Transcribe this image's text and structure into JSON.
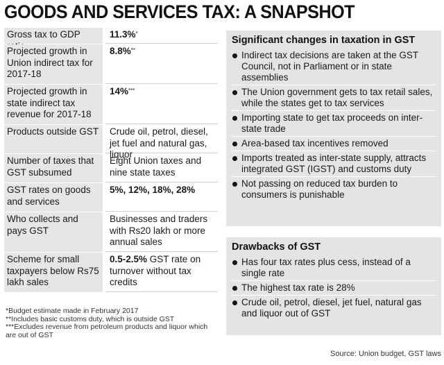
{
  "title": "GOODS AND SERVICES TAX: A SNAPSHOT",
  "table": [
    {
      "label": "Gross tax to GDP ratio",
      "value_bold": "11.3%",
      "value_sup": "*",
      "value_rest": ""
    },
    {
      "label": "Projected growth in Union indirect tax for 2017-18",
      "value_bold": "8.8%",
      "value_sup": "**",
      "value_rest": ""
    },
    {
      "label": "Projected growth in state indirect tax revenue for 2017-18",
      "value_bold": "14%",
      "value_sup": "***",
      "value_rest": ""
    },
    {
      "label": "Products outside GST",
      "value_bold": "",
      "value_sup": "",
      "value_rest": "Crude oil, petrol, diesel, jet fuel and natural gas, liquor"
    },
    {
      "label": "Number of taxes that GST subsumed",
      "value_bold": "",
      "value_sup": "",
      "value_rest": "Eight Union taxes and nine state taxes"
    },
    {
      "label": "GST rates on goods and services",
      "value_bold": "5%, 12%, 18%, 28%",
      "value_sup": "",
      "value_rest": ""
    },
    {
      "label": "Who collects and pays GST",
      "value_bold": "",
      "value_sup": "",
      "value_rest": "Businesses and traders with Rs20 lakh or more annual sales"
    },
    {
      "label": "Scheme for small taxpayers below Rs75 lakh sales",
      "value_bold": "0.5-2.5%",
      "value_sup": "",
      "value_rest": " GST rate on turnover without tax credits"
    }
  ],
  "footnotes": [
    "*Budget estimate made in February 2017",
    "**Includes basic customs duty, which is outside GST",
    "***Excludes revenue from petroleum products and liquor which are out of GST"
  ],
  "changes": {
    "title": "Significant changes in taxation in GST",
    "items": [
      "Indirect tax decisions are taken at the GST Council, not in Parliament or in state assemblies",
      "The Union government gets to tax retail sales, while the states get to tax services",
      "Importing state to get tax proceeds on inter-state trade",
      "Area-based tax incentives removed",
      "Imports treated as inter-state supply, attracts integrated GST (IGST) and customs duty",
      "Not passing on reduced tax burden to consumers is punishable"
    ]
  },
  "drawbacks": {
    "title": "Drawbacks of GST",
    "items": [
      "Has four tax rates plus cess, instead of a single rate",
      "The highest tax rate is 28%",
      "Crude oil, petrol, diesel, jet fuel, natural gas and liquor out of GST"
    ]
  },
  "source": "Source: Union budget, GST laws"
}
